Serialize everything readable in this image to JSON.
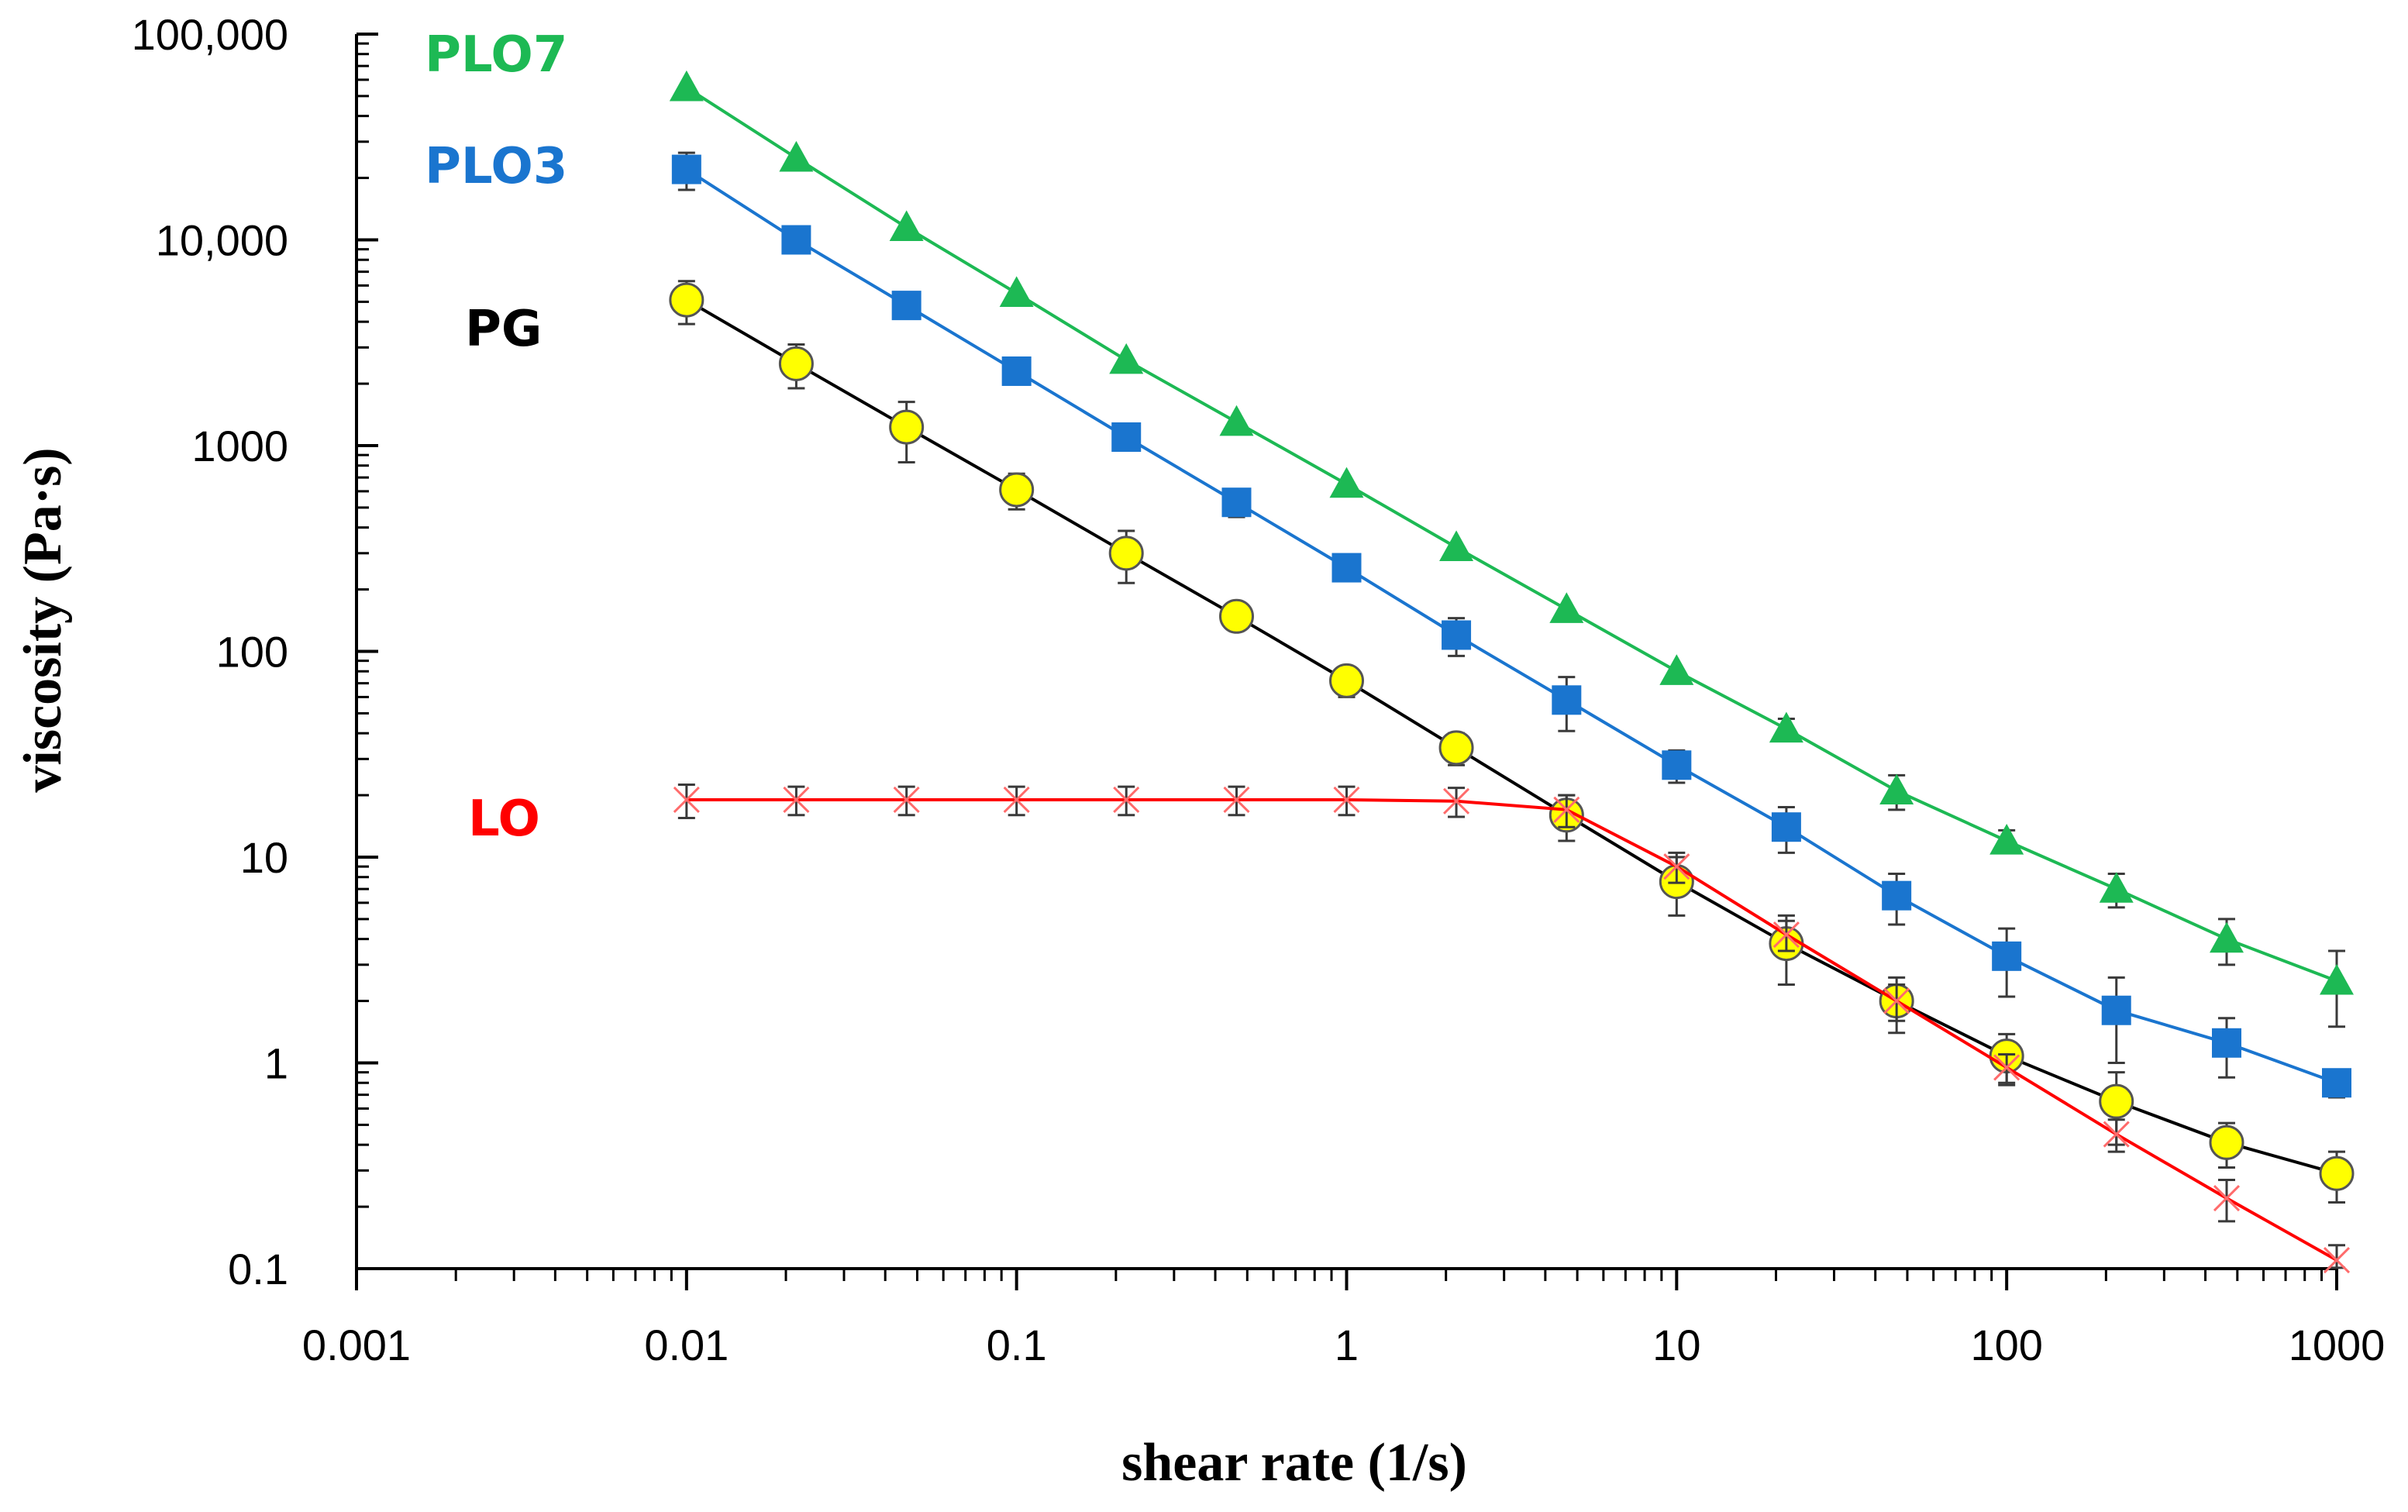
{
  "chart_data": {
    "type": "line",
    "scale": {
      "x": "log",
      "y": "log"
    },
    "xlabel": "shear rate (1/s)",
    "ylabel": "viscosity (Pa·s)",
    "xlim": [
      0.001,
      1000
    ],
    "ylim": [
      0.1,
      100000
    ],
    "x_ticks": [
      {
        "value": 0.001,
        "label": "0.001"
      },
      {
        "value": 0.01,
        "label": "0.01"
      },
      {
        "value": 0.1,
        "label": "0.1"
      },
      {
        "value": 1,
        "label": "1"
      },
      {
        "value": 10,
        "label": "10"
      },
      {
        "value": 100,
        "label": "100"
      },
      {
        "value": 1000,
        "label": "1000"
      }
    ],
    "y_ticks": [
      {
        "value": 0.1,
        "label": "0.1"
      },
      {
        "value": 1,
        "label": "1"
      },
      {
        "value": 10,
        "label": "10"
      },
      {
        "value": 100,
        "label": "100"
      },
      {
        "value": 1000,
        "label": "1000"
      },
      {
        "value": 10000,
        "label": "10,000"
      },
      {
        "value": 100000,
        "label": "100,000"
      }
    ],
    "x": [
      0.01,
      0.0215,
      0.0464,
      0.1,
      0.215,
      0.464,
      1,
      2.15,
      4.64,
      10,
      21.5,
      46.4,
      100,
      215,
      464,
      1000
    ],
    "series": [
      {
        "name": "PLO7",
        "color": "#1db954",
        "marker": "triangle",
        "values": [
          55000,
          25000,
          11500,
          5500,
          2600,
          1300,
          650,
          320,
          160,
          80,
          42,
          21,
          12,
          7,
          4,
          2.5
        ],
        "errors": [
          0,
          0,
          0,
          0,
          0,
          0,
          0,
          0,
          0,
          0,
          5,
          4,
          1.5,
          1.3,
          1.0,
          1.0
        ]
      },
      {
        "name": "PLO3",
        "color": "#1a75cf",
        "marker": "square",
        "values": [
          22000,
          10000,
          4800,
          2300,
          1100,
          530,
          255,
          120,
          58,
          28,
          14,
          6.5,
          3.3,
          1.8,
          1.25,
          0.8
        ],
        "errors": [
          4500,
          0,
          0,
          0,
          0,
          80,
          0,
          25,
          17,
          5,
          3.5,
          1.8,
          1.2,
          0.8,
          0.4,
          0.12
        ]
      },
      {
        "name": "PG",
        "color": "#000000",
        "marker": "circle",
        "values": [
          5100,
          2500,
          1230,
          610,
          300,
          148,
          72,
          34,
          16,
          7.6,
          3.8,
          2.0,
          1.08,
          0.65,
          0.41,
          0.29
        ],
        "errors": [
          1200,
          600,
          400,
          120,
          85,
          0,
          12,
          6,
          4,
          2.4,
          1.4,
          0.6,
          0.3,
          0.25,
          0.1,
          0.08
        ]
      },
      {
        "name": "LO",
        "color": "#ff0000",
        "marker": "x",
        "values": [
          19,
          19,
          19,
          19,
          19,
          19,
          19,
          18.7,
          17,
          9,
          4.2,
          2.0,
          0.95,
          0.45,
          0.22,
          0.11
        ],
        "errors": [
          3.5,
          3,
          3,
          3,
          3,
          3,
          3,
          3,
          3,
          1.5,
          0.7,
          0.4,
          0.15,
          0.08,
          0.05,
          0.02
        ]
      }
    ]
  },
  "labels": {
    "plo7": "PLO7",
    "plo3": "PLO3",
    "pg": "PG",
    "lo": "LO"
  }
}
